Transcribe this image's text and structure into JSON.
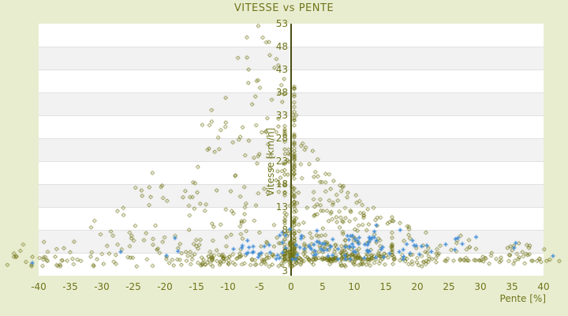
{
  "title": "VITESSE vs PENTE",
  "colors": {
    "background": "#e9edd0",
    "stripe_light": "#ffffff",
    "stripe_dark": "#f2f2f2",
    "stripe_border": "#e1e1e1",
    "axis_text": "#70751b",
    "zero_line": "#4a4e10",
    "series_main": "#6f7214",
    "series_secondary": "#3f8cd6"
  },
  "chart_data": {
    "type": "scatter",
    "title": "VITESSE vs PENTE",
    "xlabel": "Pente [%]",
    "ylabel": "Vitesse [km/h]",
    "x_axis": {
      "min": -40,
      "max": 40,
      "tick_step": 5,
      "ticks": [
        -40,
        -35,
        -30,
        -25,
        -20,
        -15,
        -10,
        -5,
        0,
        5,
        10,
        15,
        20,
        25,
        30,
        35,
        40
      ]
    },
    "y_axis": {
      "min": -2,
      "max": 53,
      "ticks": [
        53,
        48,
        43,
        38,
        33,
        28,
        23,
        18,
        13,
        8,
        3
      ],
      "edge_label": {
        "text": "3",
        "v": -1.0
      },
      "grid_bands": true
    },
    "legend": "none",
    "seed": 11,
    "series": [
      {
        "name": "vitesse-pente-principal",
        "marker": "diamond",
        "color": "#6f7214",
        "clusters": [
          {
            "n": 150,
            "p": {
              "kind": "uniform",
              "min": -16,
              "max": 22
            },
            "v": {
              "kind": "uniform",
              "min": 0.2,
              "max": 2.6
            }
          },
          {
            "n": 90,
            "p": {
              "kind": "uniform",
              "min": -45,
              "max": 43
            },
            "v": {
              "kind": "uniform",
              "min": 0.0,
              "max": 2.4
            }
          },
          {
            "n": 270,
            "p": {
              "kind": "tri",
              "center": -6,
              "halfwidth": 28,
              "min": -34,
              "max": 0.5
            },
            "v": {
              "kind": "profile",
              "base": 2.5,
              "pow": 1.45,
              "profile": [
                [
                  -34,
                  9
                ],
                [
                  -26,
                  16
                ],
                [
                  -20,
                  24
                ],
                [
                  -15,
                  32
                ],
                [
                  -11,
                  40
                ],
                [
                  -8,
                  48
                ],
                [
                  -5,
                  52
                ],
                [
                  -2,
                  46
                ],
                [
                  0.5,
                  40
                ]
              ]
            }
          },
          {
            "n": 300,
            "p": {
              "kind": "gauss3",
              "center": 6,
              "spread": 11,
              "min": -1,
              "max": 16
            },
            "v": {
              "kind": "profile",
              "base": 1.5,
              "pow": 2.1,
              "profile": [
                [
                  -1,
                  33
                ],
                [
                  1,
                  29
                ],
                [
                  3,
                  26
                ],
                [
                  6,
                  21
                ],
                [
                  9,
                  17
                ],
                [
                  12,
                  14
                ],
                [
                  16,
                  11
                ]
              ]
            }
          },
          {
            "n": 85,
            "p": {
              "kind": "uniform",
              "min": 15,
              "max": 40.5
            },
            "v": {
              "kind": "profile",
              "base": 1.2,
              "pow": 1.7,
              "profile": [
                [
                  15,
                  11
                ],
                [
                  20,
                  8.5
                ],
                [
                  28,
                  6.5
                ],
                [
                  40.5,
                  5
                ]
              ]
            }
          },
          {
            "n": 28,
            "p": {
              "kind": "uniform",
              "min": -0.25,
              "max": 0.25
            },
            "v": {
              "kind": "uniform",
              "min": 0.0,
              "max": 5.5
            }
          },
          {
            "n": 16,
            "p": {
              "kind": "uniform",
              "min": -44,
              "max": -33.5
            },
            "v": {
              "kind": "uniform",
              "min": 0.3,
              "max": 5.5
            }
          }
        ],
        "extra_points": [
          [
            -5.2,
            52.5
          ],
          [
            -7,
            50
          ],
          [
            -3.5,
            49
          ],
          [
            -36,
            4
          ],
          [
            0.8,
            33
          ],
          [
            41,
            1.5
          ],
          [
            42.5,
            1.2
          ],
          [
            -42,
            1.0
          ]
        ]
      },
      {
        "name": "vitesse-pente-secondaire",
        "marker": "plus",
        "color": "#3f8cd6",
        "clusters": [
          {
            "n": 105,
            "p": {
              "kind": "band",
              "center": 9,
              "spread": 21,
              "min": -14,
              "max": 33
            },
            "v": {
              "kind": "band",
              "center": 4.3,
              "spread": 4.2,
              "min": 1.6,
              "max": 8.2
            }
          },
          {
            "n": 14,
            "p": {
              "kind": "uniform",
              "min": -31,
              "max": 42
            },
            "v": {
              "kind": "uniform",
              "min": 1.2,
              "max": 6.5
            }
          }
        ],
        "extra_points": [
          [
            -41,
            0.8
          ],
          [
            -27,
            3.2
          ],
          [
            41.5,
            2.3
          ],
          [
            13.5,
            9.0
          ]
        ]
      }
    ]
  }
}
